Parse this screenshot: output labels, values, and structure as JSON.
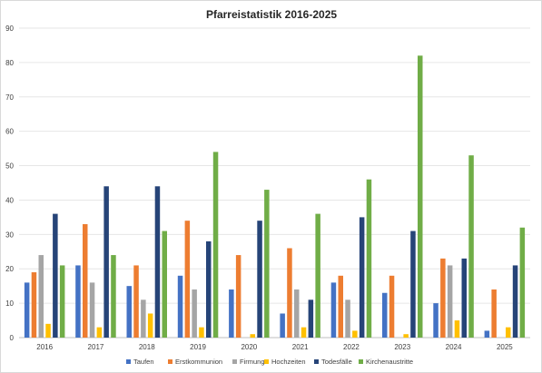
{
  "chart_data": {
    "type": "bar",
    "title": "Pfarreistatistik 2016-2025",
    "xlabel": "",
    "ylabel": "",
    "ylim": [
      0,
      90
    ],
    "yticks": [
      0,
      10,
      20,
      30,
      40,
      50,
      60,
      70,
      80,
      90
    ],
    "grid": true,
    "legend_position": "bottom",
    "categories": [
      "2016",
      "2017",
      "2018",
      "2019",
      "2020",
      "2021",
      "2022",
      "2023",
      "2024",
      "2025"
    ],
    "series": [
      {
        "name": "Taufen",
        "color": "#4472c4",
        "values": [
          16,
          21,
          15,
          18,
          14,
          7,
          16,
          13,
          10,
          2
        ]
      },
      {
        "name": "Erstkommunion",
        "color": "#ed7d31",
        "values": [
          19,
          33,
          21,
          34,
          24,
          26,
          18,
          18,
          23,
          14
        ]
      },
      {
        "name": "Firmung",
        "color": "#a5a5a5",
        "values": [
          24,
          16,
          11,
          14,
          0,
          14,
          11,
          0,
          21,
          0
        ]
      },
      {
        "name": "Hochzeiten",
        "color": "#ffc000",
        "values": [
          4,
          3,
          7,
          3,
          1,
          3,
          2,
          1,
          5,
          3
        ]
      },
      {
        "name": "Todesfälle",
        "color": "#264478",
        "values": [
          36,
          44,
          44,
          28,
          34,
          11,
          35,
          31,
          23,
          21
        ]
      },
      {
        "name": "Kirchenaustritte",
        "color": "#70ad47",
        "values": [
          21,
          24,
          31,
          54,
          43,
          36,
          46,
          82,
          53,
          32
        ]
      }
    ]
  }
}
